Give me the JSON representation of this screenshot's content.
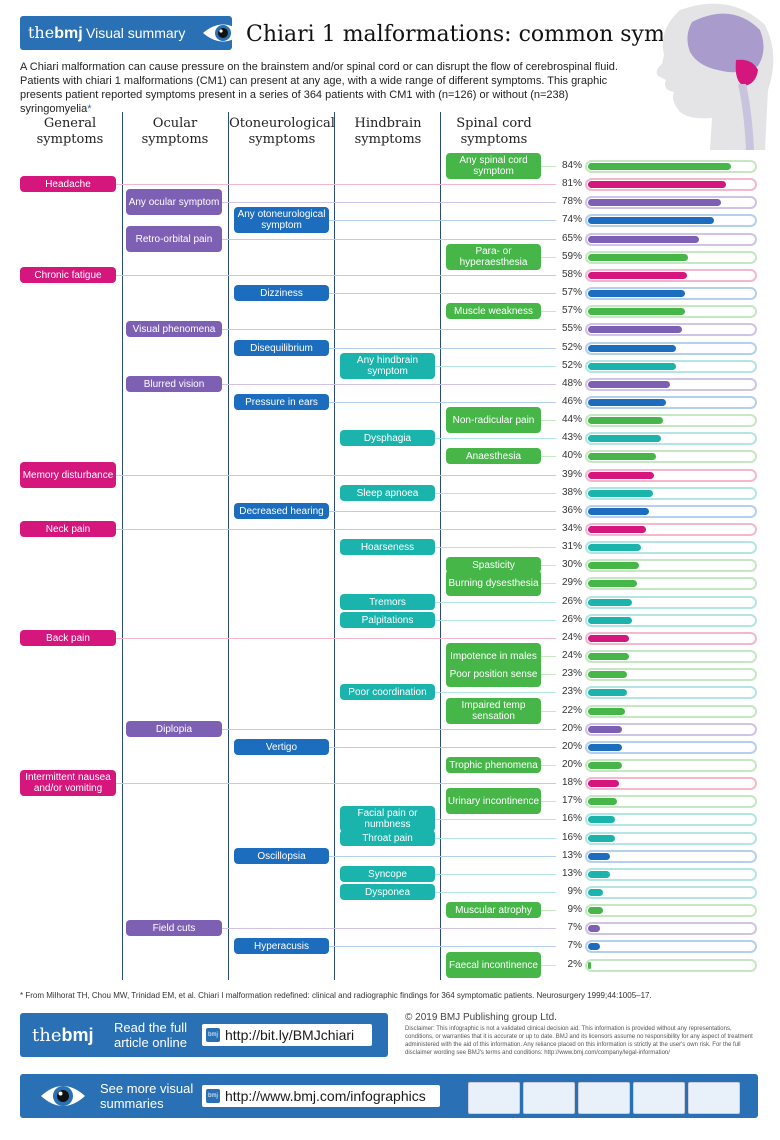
{
  "header": {
    "logo_the": "the",
    "logo_bmj": "bmj",
    "badge": "Visual summary",
    "title": "Chiari 1 malformations: common symptoms",
    "intro": "A Chiari malformation can cause pressure on the brainstem and/or spinal cord or can disrupt the flow of cerebrospinal fluid. Patients with chiari 1 malformations (CM1) can present at any age, with a wide range of different symptoms. This graphic presents patient reported symptoms present in a series of 364 patients with CM1 with (n=126) or without (n=238) syringomyelia",
    "intro_mark": "*"
  },
  "columns": [
    {
      "key": "gen",
      "label": "General symptoms"
    },
    {
      "key": "ocu",
      "label": "Ocular symptoms"
    },
    {
      "key": "oto",
      "label": "Otoneurological symptoms"
    },
    {
      "key": "hind",
      "label": "Hindbrain symptoms"
    },
    {
      "key": "spin",
      "label": "Spinal cord symptoms"
    }
  ],
  "colors": {
    "gen": "#d5167c",
    "ocu": "#7d5fb4",
    "oto": "#1c6dbd",
    "hind": "#1ab4ac",
    "spin": "#46b649"
  },
  "symptoms": [
    {
      "label": "Any spinal cord symptom",
      "cat": "spin",
      "pct": 84
    },
    {
      "label": "Headache",
      "cat": "gen",
      "pct": 81
    },
    {
      "label": "Any ocular symptom",
      "cat": "ocu",
      "pct": 78
    },
    {
      "label": "Any otoneurological symptom",
      "cat": "oto",
      "pct": 74
    },
    {
      "label": "Retro-orbital pain",
      "cat": "ocu",
      "pct": 65
    },
    {
      "label": "Para- or hyperaesthesia",
      "cat": "spin",
      "pct": 59
    },
    {
      "label": "Chronic fatigue",
      "cat": "gen",
      "pct": 58
    },
    {
      "label": "Dizziness",
      "cat": "oto",
      "pct": 57
    },
    {
      "label": "Muscle weakness",
      "cat": "spin",
      "pct": 57
    },
    {
      "label": "Visual phenomena",
      "cat": "ocu",
      "pct": 55
    },
    {
      "label": "Disequilibrium",
      "cat": "oto",
      "pct": 52
    },
    {
      "label": "Any hindbrain symptom",
      "cat": "hind",
      "pct": 52
    },
    {
      "label": "Blurred vision",
      "cat": "ocu",
      "pct": 48
    },
    {
      "label": "Pressure in ears",
      "cat": "oto",
      "pct": 46
    },
    {
      "label": "Non-radicular pain",
      "cat": "spin",
      "pct": 44
    },
    {
      "label": "Dysphagia",
      "cat": "hind",
      "pct": 43
    },
    {
      "label": "Anaesthesia",
      "cat": "spin",
      "pct": 40
    },
    {
      "label": "Memory disturbance",
      "cat": "gen",
      "pct": 39
    },
    {
      "label": "Sleep apnoea",
      "cat": "hind",
      "pct": 38
    },
    {
      "label": "Decreased hearing",
      "cat": "oto",
      "pct": 36
    },
    {
      "label": "Neck pain",
      "cat": "gen",
      "pct": 34
    },
    {
      "label": "Hoarseness",
      "cat": "hind",
      "pct": 31
    },
    {
      "label": "Spasticity",
      "cat": "spin",
      "pct": 30
    },
    {
      "label": "Burning dysesthesia",
      "cat": "spin",
      "pct": 29
    },
    {
      "label": "Tremors",
      "cat": "hind",
      "pct": 26
    },
    {
      "label": "Palpitations",
      "cat": "hind",
      "pct": 26
    },
    {
      "label": "Back pain",
      "cat": "gen",
      "pct": 24
    },
    {
      "label": "Impotence in males",
      "cat": "spin",
      "pct": 24
    },
    {
      "label": "Poor position sense",
      "cat": "spin",
      "pct": 23
    },
    {
      "label": "Poor coordination",
      "cat": "hind",
      "pct": 23
    },
    {
      "label": "Impaired temp sensation",
      "cat": "spin",
      "pct": 22
    },
    {
      "label": "Diplopia",
      "cat": "ocu",
      "pct": 20
    },
    {
      "label": "Vertigo",
      "cat": "oto",
      "pct": 20
    },
    {
      "label": "Trophic phenomena",
      "cat": "spin",
      "pct": 20
    },
    {
      "label": "Intermittent nausea and/or vomiting",
      "cat": "gen",
      "pct": 18
    },
    {
      "label": "Urinary incontinence",
      "cat": "spin",
      "pct": 17
    },
    {
      "label": "Facial pain or numbness",
      "cat": "hind",
      "pct": 16
    },
    {
      "label": "Throat pain",
      "cat": "hind",
      "pct": 16
    },
    {
      "label": "Oscillopsia",
      "cat": "oto",
      "pct": 13
    },
    {
      "label": "Syncope",
      "cat": "hind",
      "pct": 13
    },
    {
      "label": "Dysponea",
      "cat": "hind",
      "pct": 9
    },
    {
      "label": "Muscular atrophy",
      "cat": "spin",
      "pct": 9
    },
    {
      "label": "Field cuts",
      "cat": "ocu",
      "pct": 7
    },
    {
      "label": "Hyperacusis",
      "cat": "oto",
      "pct": 7
    },
    {
      "label": "Faecal incontinence",
      "cat": "spin",
      "pct": 2
    }
  ],
  "footnote": "* From Milhorat TH, Chou MW, Trinidad EM, et al. Chiari I malformation redefined: clinical and radiographic findings for 364 symptomatic patients. Neurosurgery 1999;44:1005–17.",
  "footer": {
    "read_full": "Read the full article online",
    "article_url": "http://bit.ly/BMJchiari",
    "url_icon": "bmj",
    "copyright": "© 2019 BMJ Publishing group Ltd.",
    "disclaimer": "Disclaimer: This infographic is not a validated clinical decision aid. This information is provided without any representations, conditions, or warranties that it is accurate or up to date. BMJ and its licensors assume no responsibility for any aspect of treatment administered with the aid of this information. Any reliance placed on this information is strictly at the user's own risk. For the full disclaimer wording see BMJ's terms and conditions: http://www.bmj.com/company/legal-information/",
    "see_more": "See more visual summaries",
    "infographics_url": "http://www.bmj.com/infographics"
  }
}
